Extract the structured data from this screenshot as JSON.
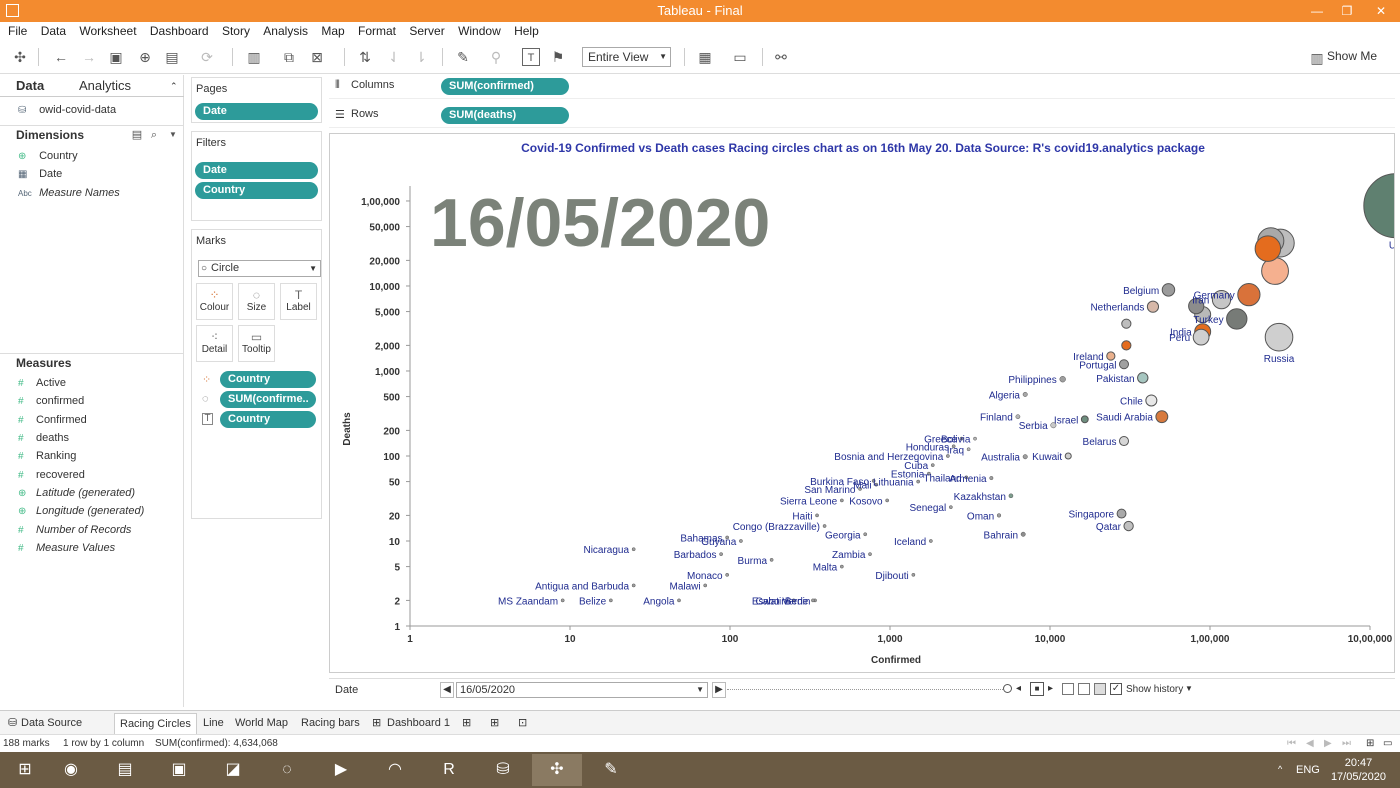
{
  "window": {
    "title": "Tableau - Final"
  },
  "menu": [
    "File",
    "Data",
    "Worksheet",
    "Dashboard",
    "Story",
    "Analysis",
    "Map",
    "Format",
    "Server",
    "Window",
    "Help"
  ],
  "toolbar": {
    "fit": "Entire View",
    "show_me": "Show Me"
  },
  "data_pane": {
    "tabs": [
      "Data",
      "Analytics"
    ],
    "source": "owid-covid-data",
    "dimensions_label": "Dimensions",
    "dimensions": [
      {
        "icon": "globe",
        "label": "Country"
      },
      {
        "icon": "calendar",
        "label": "Date"
      },
      {
        "icon": "abc",
        "label": "Measure Names"
      }
    ],
    "measures_label": "Measures",
    "measures": [
      "Active",
      "confirmed",
      "Confirmed",
      "deaths",
      "Ranking",
      "recovered",
      "Latitude (generated)",
      "Longitude (generated)",
      "Number of Records",
      "Measure Values"
    ]
  },
  "cards": {
    "pages": {
      "title": "Pages",
      "pill": "Date"
    },
    "filters": {
      "title": "Filters",
      "pills": [
        "Date",
        "Country"
      ]
    },
    "marks": {
      "title": "Marks",
      "type": "Circle",
      "buttons": [
        "Colour",
        "Size",
        "Label",
        "Detail",
        "Tooltip"
      ],
      "pills": [
        "Country",
        "SUM(confirme..",
        "Country"
      ]
    }
  },
  "shelves": {
    "columns_label": "Columns",
    "columns_pill": "SUM(confirmed)",
    "rows_label": "Rows",
    "rows_pill": "SUM(deaths)"
  },
  "chart_data": {
    "type": "scatter",
    "title": "Covid-19 Confirmed vs Death cases Racing circles chart as on 16th May 20. Data Source: R's covid19.analytics package",
    "watermark": "16/05/2020",
    "xlabel": "Confirmed",
    "ylabel": "Deaths",
    "x_scale": "log",
    "y_scale": "log",
    "xlim": [
      1,
      1000000
    ],
    "ylim": [
      1,
      150000
    ],
    "x_ticks": [
      {
        "value": 1,
        "label": "1"
      },
      {
        "value": 10,
        "label": "10"
      },
      {
        "value": 100,
        "label": "100"
      },
      {
        "value": 1000,
        "label": "1,000"
      },
      {
        "value": 10000,
        "label": "10,000"
      },
      {
        "value": 100000,
        "label": "1,00,000"
      },
      {
        "value": 1000000,
        "label": "10,00,000"
      }
    ],
    "y_ticks": [
      {
        "value": 1,
        "label": "1"
      },
      {
        "value": 2,
        "label": "2"
      },
      {
        "value": 5,
        "label": "5"
      },
      {
        "value": 10,
        "label": "10"
      },
      {
        "value": 20,
        "label": "20"
      },
      {
        "value": 50,
        "label": "50"
      },
      {
        "value": 100,
        "label": "100"
      },
      {
        "value": 200,
        "label": "200"
      },
      {
        "value": 500,
        "label": "500"
      },
      {
        "value": 1000,
        "label": "1,000"
      },
      {
        "value": 2000,
        "label": "2,000"
      },
      {
        "value": 5000,
        "label": "5,000"
      },
      {
        "value": 10000,
        "label": "10,000"
      },
      {
        "value": 20000,
        "label": "20,000"
      },
      {
        "value": 50000,
        "label": "50,000"
      },
      {
        "value": 100000,
        "label": "1,00,000"
      }
    ],
    "legend": "none",
    "grid": false,
    "points": [
      {
        "label": "US",
        "x": 1450000,
        "y": 88000,
        "color": "#5F8070"
      },
      {
        "label": "",
        "x": 240000,
        "y": 34000,
        "color": "#A9A9A9"
      },
      {
        "label": "",
        "x": 275000,
        "y": 32000,
        "color": "#BDBDBD"
      },
      {
        "label": "",
        "x": 230000,
        "y": 27500,
        "color": "#E46C1E"
      },
      {
        "label": "",
        "x": 255000,
        "y": 15000,
        "color": "#F5B08F"
      },
      {
        "label": "Germany",
        "x": 175000,
        "y": 7900,
        "color": "#D9723A"
      },
      {
        "label": "Iran",
        "x": 118000,
        "y": 6900,
        "color": "#C6C6C6"
      },
      {
        "label": "Belgium",
        "x": 55000,
        "y": 9000,
        "color": "#9B9B9B"
      },
      {
        "label": "Netherlands",
        "x": 44000,
        "y": 5700,
        "color": "#D7B8A8"
      },
      {
        "label": "",
        "x": 82000,
        "y": 5800,
        "color": "#8C8C8C"
      },
      {
        "label": "",
        "x": 90000,
        "y": 4600,
        "color": "#B9B9B9"
      },
      {
        "label": "Turkey",
        "x": 147000,
        "y": 4100,
        "color": "#777B77"
      },
      {
        "label": "India",
        "x": 90000,
        "y": 2900,
        "color": "#E46C1E"
      },
      {
        "label": "Peru",
        "x": 88000,
        "y": 2500,
        "color": "#CFCFCF"
      },
      {
        "label": "Russia",
        "x": 270000,
        "y": 2500,
        "color": "#CFCFCF"
      },
      {
        "label": "Ireland",
        "x": 24000,
        "y": 1500,
        "color": "#E9B08C"
      },
      {
        "label": "Portugal",
        "x": 29000,
        "y": 1200,
        "color": "#A0A0A0"
      },
      {
        "label": "",
        "x": 30000,
        "y": 2000,
        "color": "#E46C1E"
      },
      {
        "label": "",
        "x": 30000,
        "y": 3600,
        "color": "#BDBDBD"
      },
      {
        "label": "Pakistan",
        "x": 38000,
        "y": 830,
        "color": "#A6C6C0"
      },
      {
        "label": "Chile",
        "x": 43000,
        "y": 450,
        "color": "#E8E8E8"
      },
      {
        "label": "Saudi Arabia",
        "x": 50000,
        "y": 290,
        "color": "#D77A3E"
      },
      {
        "label": "Belarus",
        "x": 29000,
        "y": 150,
        "color": "#D6D6D6"
      },
      {
        "label": "Singapore",
        "x": 28000,
        "y": 21,
        "color": "#A9A9A9"
      },
      {
        "label": "Qatar",
        "x": 31000,
        "y": 15,
        "color": "#C0C0C0"
      },
      {
        "label": "Philippines",
        "x": 12000,
        "y": 800,
        "color": "#9E9E9E"
      },
      {
        "label": "Algeria",
        "x": 7000,
        "y": 530,
        "color": "#A7A7A7"
      },
      {
        "label": "Finland",
        "x": 6300,
        "y": 290,
        "color": "#B5B5B5"
      },
      {
        "label": "Serbia",
        "x": 10500,
        "y": 230,
        "color": "#C8C8C8"
      },
      {
        "label": "Israel",
        "x": 16500,
        "y": 270,
        "color": "#6E8E7E"
      },
      {
        "label": "Kuwait",
        "x": 13000,
        "y": 100,
        "color": "#CFCFCF"
      },
      {
        "label": "Greece",
        "x": 2800,
        "y": 160,
        "color": "#9E9E9E"
      },
      {
        "label": "Honduras",
        "x": 2500,
        "y": 130,
        "color": "#9E9E9E"
      },
      {
        "label": "Bolivia",
        "x": 3400,
        "y": 160,
        "color": "#B5B5B5"
      },
      {
        "label": "Bosnia and Herzegovina",
        "x": 2300,
        "y": 100,
        "color": "#9E9E9E"
      },
      {
        "label": "Iraq",
        "x": 3100,
        "y": 120,
        "color": "#B5B5B5"
      },
      {
        "label": "Australia",
        "x": 7000,
        "y": 98,
        "color": "#9E9E9E"
      },
      {
        "label": "Cuba",
        "x": 1850,
        "y": 78,
        "color": "#9E9E9E"
      },
      {
        "label": "Estonia",
        "x": 1750,
        "y": 62,
        "color": "#9E9E9E"
      },
      {
        "label": "Armenia",
        "x": 4300,
        "y": 55,
        "color": "#9E9E9E"
      },
      {
        "label": "Lithuania",
        "x": 1500,
        "y": 50,
        "color": "#9E9E9E"
      },
      {
        "label": "Thailand",
        "x": 3000,
        "y": 56,
        "color": "#9E9E9E"
      },
      {
        "label": "Kazakhstan",
        "x": 5700,
        "y": 34,
        "color": "#7E9E8E"
      },
      {
        "label": "Burkina Faso",
        "x": 790,
        "y": 51,
        "color": "#9E9E9E"
      },
      {
        "label": "Mali",
        "x": 820,
        "y": 46,
        "color": "#9E9E9E"
      },
      {
        "label": "San Marino",
        "x": 650,
        "y": 41,
        "color": "#9E9E9E"
      },
      {
        "label": "Kosovo",
        "x": 960,
        "y": 30,
        "color": "#9E9E9E"
      },
      {
        "label": "Sierra Leone",
        "x": 500,
        "y": 30,
        "color": "#9E9E9E"
      },
      {
        "label": "Senegal",
        "x": 2400,
        "y": 25,
        "color": "#9E9E9E"
      },
      {
        "label": "Oman",
        "x": 4800,
        "y": 20,
        "color": "#9E9E9E"
      },
      {
        "label": "Haiti",
        "x": 350,
        "y": 20,
        "color": "#9E9E9E"
      },
      {
        "label": "Congo (Brazzaville)",
        "x": 390,
        "y": 15,
        "color": "#9E9E9E"
      },
      {
        "label": "Georgia",
        "x": 700,
        "y": 12,
        "color": "#9E9E9E"
      },
      {
        "label": "Bahrain",
        "x": 6800,
        "y": 12,
        "color": "#8E8E8E"
      },
      {
        "label": "Bahamas",
        "x": 96,
        "y": 11,
        "color": "#9E9E9E"
      },
      {
        "label": "Guyana",
        "x": 117,
        "y": 10,
        "color": "#9E9E9E"
      },
      {
        "label": "Iceland",
        "x": 1800,
        "y": 10,
        "color": "#9E9E9E"
      },
      {
        "label": "Zambia",
        "x": 750,
        "y": 7,
        "color": "#9E9E9E"
      },
      {
        "label": "Nicaragua",
        "x": 25,
        "y": 8,
        "color": "#9E9E9E"
      },
      {
        "label": "Barbados",
        "x": 88,
        "y": 7,
        "color": "#9E9E9E"
      },
      {
        "label": "Burma",
        "x": 182,
        "y": 6,
        "color": "#9E9E9E"
      },
      {
        "label": "Malta",
        "x": 500,
        "y": 5,
        "color": "#9E9E9E"
      },
      {
        "label": "Monaco",
        "x": 96,
        "y": 4,
        "color": "#9E9E9E"
      },
      {
        "label": "Djibouti",
        "x": 1400,
        "y": 4,
        "color": "#9E9E9E"
      },
      {
        "label": "Antigua and Barbuda",
        "x": 25,
        "y": 3,
        "color": "#9E9E9E"
      },
      {
        "label": "Malawi",
        "x": 70,
        "y": 3,
        "color": "#9E9E9E"
      },
      {
        "label": "Cabo Verde",
        "x": 330,
        "y": 2,
        "color": "#9E9E9E"
      },
      {
        "label": "MS Zaandam",
        "x": 9,
        "y": 2,
        "color": "#9E9E9E"
      },
      {
        "label": "Belize",
        "x": 18,
        "y": 2,
        "color": "#9E9E9E"
      },
      {
        "label": "Angola",
        "x": 48,
        "y": 2,
        "color": "#9E9E9E"
      },
      {
        "label": "Eswatini",
        "x": 250,
        "y": 2,
        "color": "#9E9E9E"
      },
      {
        "label": "Benin",
        "x": 340,
        "y": 2,
        "color": "#9E9E9E"
      }
    ]
  },
  "date_control": {
    "label": "Date",
    "value": "16/05/2020",
    "show_history": "Show history"
  },
  "sheet_tabs": [
    "Data Source",
    "Racing Circles",
    "Line",
    "World Map",
    "Racing bars",
    "Dashboard 1"
  ],
  "status": {
    "marks": "188 marks",
    "rows_cols": "1 row by 1 column",
    "sum": "SUM(confirmed): 4,634,068"
  },
  "taskbar": {
    "lang": "ENG",
    "time": "20:47",
    "date": "17/05/2020"
  }
}
